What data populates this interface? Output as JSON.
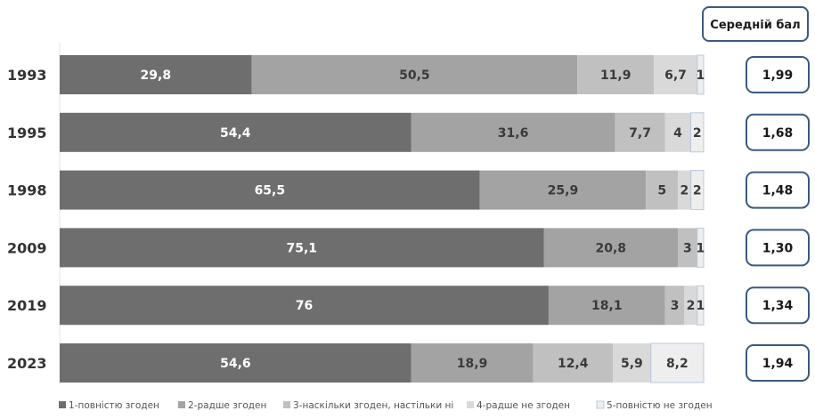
{
  "chart_data": {
    "type": "bar",
    "orientation": "horizontal",
    "stacked": true,
    "score_header": "Середній бал",
    "categories": [
      "1993",
      "1995",
      "1998",
      "2009",
      "2019",
      "2023"
    ],
    "series": [
      {
        "name": "1-повністю згоден",
        "color": "#6e6e6e",
        "label_color": "#ffffff",
        "values": [
          29.8,
          54.4,
          65.5,
          75.1,
          76,
          54.6
        ],
        "labels": [
          "29,8",
          "54,4",
          "65,5",
          "75,1",
          "76",
          "54,6"
        ]
      },
      {
        "name": "2-радше згоден",
        "color": "#a3a3a3",
        "label_color": "#3a3a3a",
        "values": [
          50.5,
          31.6,
          25.9,
          20.8,
          18.1,
          18.9
        ],
        "labels": [
          "50,5",
          "31,6",
          "25,9",
          "20,8",
          "18,1",
          "18,9"
        ]
      },
      {
        "name": "3-наскільки згоден, настільки ні",
        "color": "#c0c0c0",
        "label_color": "#3a3a3a",
        "values": [
          11.9,
          7.7,
          5,
          3,
          3,
          12.4
        ],
        "labels": [
          "11,9",
          "7,7",
          "5",
          "3",
          "3",
          "12,4"
        ]
      },
      {
        "name": "4-радше не згоден",
        "color": "#d9d9d9",
        "label_color": "#3a3a3a",
        "values": [
          6.7,
          4,
          2,
          0,
          2,
          5.9
        ],
        "labels": [
          "6,7",
          "4",
          "2",
          "",
          "2",
          "5,9"
        ]
      },
      {
        "name": "5-повністю не згоден",
        "color": "#eeeeee",
        "label_color": "#3a3a3a",
        "values": [
          1,
          2,
          2,
          1,
          1,
          8.2
        ],
        "labels": [
          "1",
          "2",
          "2",
          "1",
          "1",
          "8,2"
        ]
      }
    ],
    "average_scores": [
      "1,99",
      "1,68",
      "1,48",
      "1,30",
      "1,34",
      "1,94"
    ],
    "xlim": [
      0,
      100
    ],
    "grid": false,
    "legend_position": "bottom"
  },
  "colors": {
    "score_border": "#3b5a7f",
    "legend_square_5_border": "#b8c8dc"
  }
}
